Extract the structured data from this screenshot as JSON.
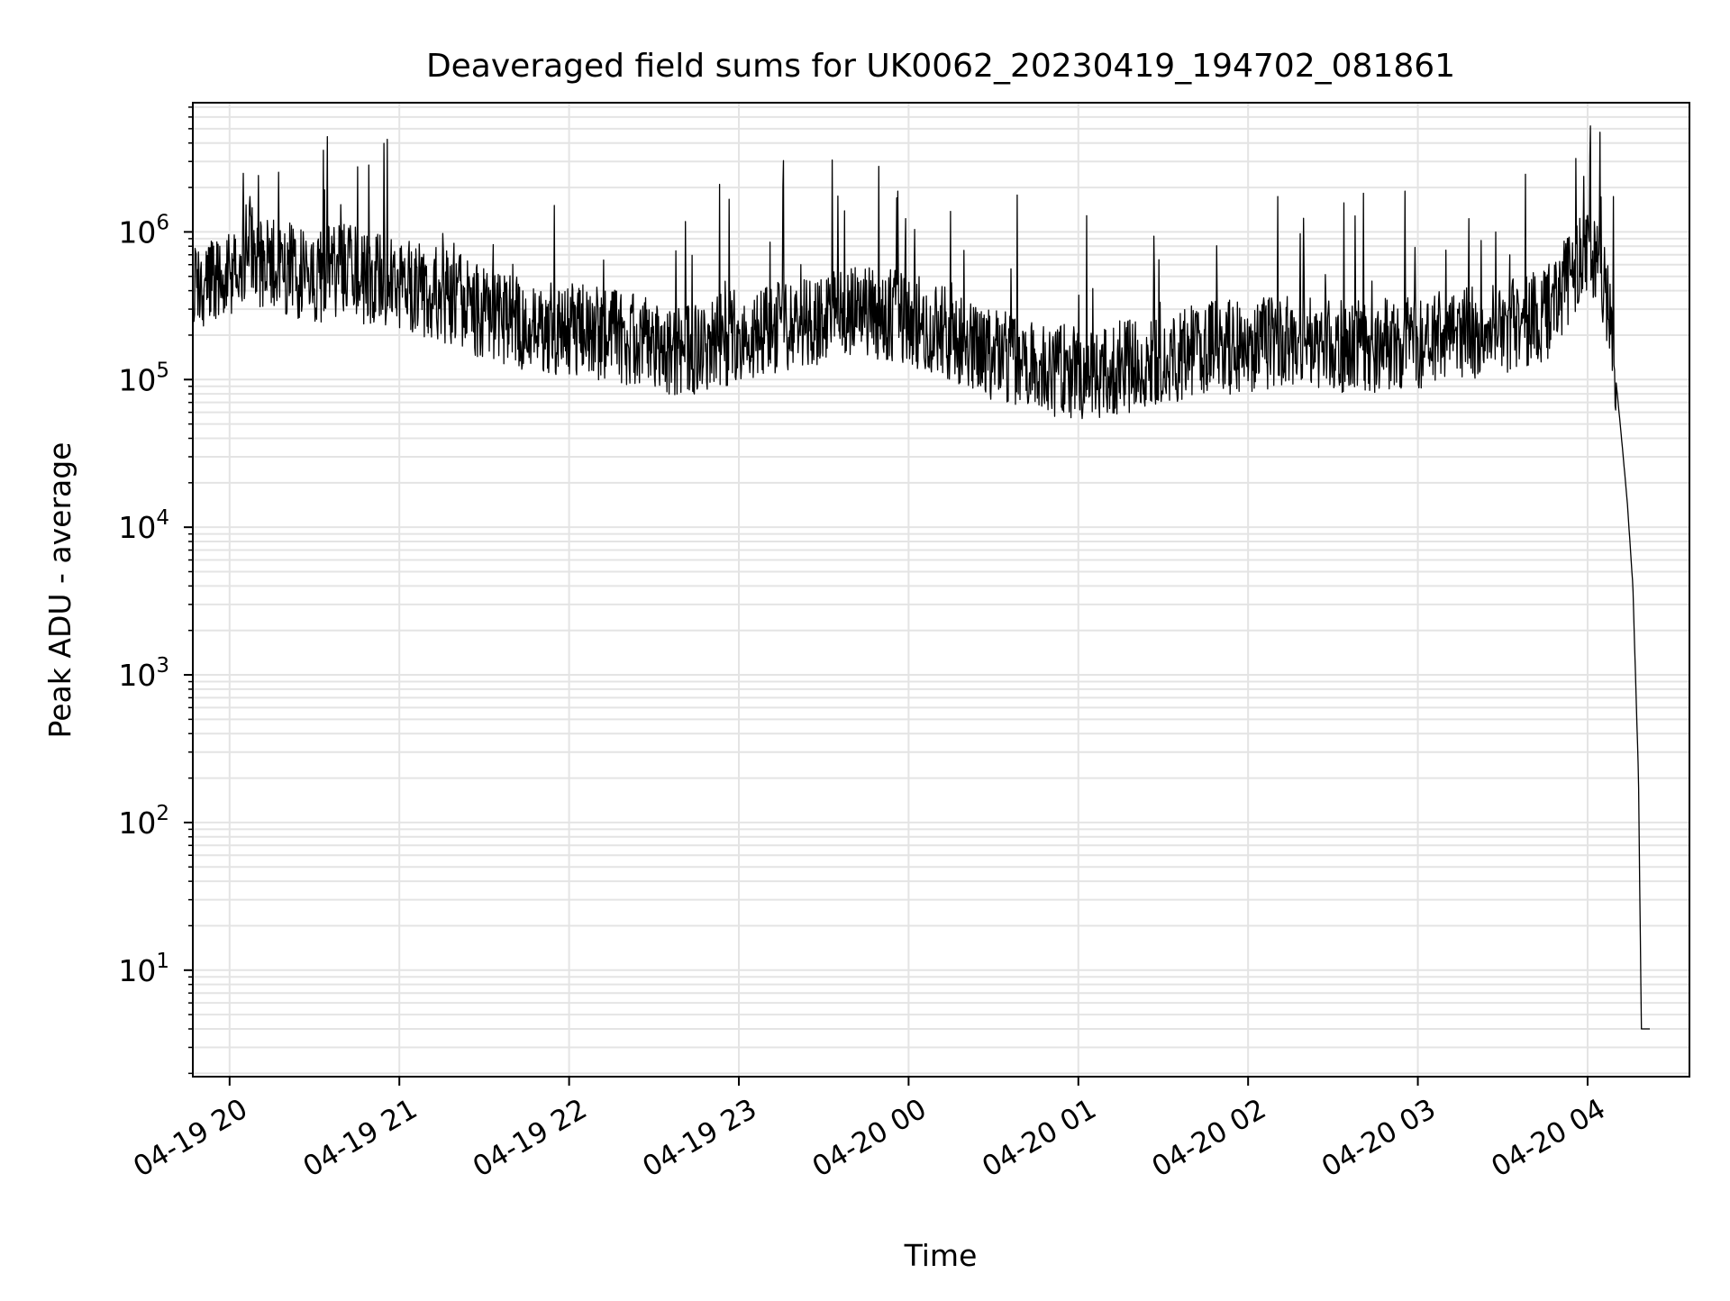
{
  "chart_data": {
    "type": "line",
    "title": "Deaveraged field sums for UK0062_20230419_194702_081861",
    "xlabel": "Time",
    "ylabel": "Peak ADU - average",
    "yscale": "log",
    "ylim": [
      1.9,
      7500000
    ],
    "xlim": [
      "2023-04-19 19:47",
      "2023-04-20 04:36"
    ],
    "x_ticks": [
      {
        "value": "2023-04-19 20:00",
        "label": "04-19 20"
      },
      {
        "value": "2023-04-19 21:00",
        "label": "04-19 21"
      },
      {
        "value": "2023-04-19 22:00",
        "label": "04-19 22"
      },
      {
        "value": "2023-04-19 23:00",
        "label": "04-19 23"
      },
      {
        "value": "2023-04-20 00:00",
        "label": "04-20 00"
      },
      {
        "value": "2023-04-20 01:00",
        "label": "04-20 01"
      },
      {
        "value": "2023-04-20 02:00",
        "label": "04-20 02"
      },
      {
        "value": "2023-04-20 03:00",
        "label": "04-20 03"
      },
      {
        "value": "2023-04-20 04:00",
        "label": "04-20 04"
      }
    ],
    "y_ticks": [
      {
        "value": 10,
        "base": "10",
        "exp": "1"
      },
      {
        "value": 100,
        "base": "10",
        "exp": "2"
      },
      {
        "value": 1000,
        "base": "10",
        "exp": "3"
      },
      {
        "value": 10000,
        "base": "10",
        "exp": "4"
      },
      {
        "value": 100000,
        "base": "10",
        "exp": "5"
      },
      {
        "value": 1000000,
        "base": "10",
        "exp": "6"
      }
    ],
    "grid": true,
    "line_color": "#000000",
    "grid_color": "#e4e4e4",
    "series": [
      {
        "x": [
          "2023-04-19 19:47",
          "2023-04-19 19:52",
          "2023-04-19 19:57",
          "2023-04-19 20:02",
          "2023-04-19 20:04",
          "2023-04-19 20:07",
          "2023-04-19 20:10",
          "2023-04-19 20:15",
          "2023-04-19 20:22",
          "2023-04-19 20:30",
          "2023-04-19 20:40",
          "2023-04-19 20:50",
          "2023-04-19 21:00",
          "2023-04-19 21:10",
          "2023-04-19 21:20",
          "2023-04-19 21:30",
          "2023-04-19 21:40",
          "2023-04-19 21:50",
          "2023-04-19 22:00",
          "2023-04-19 22:15",
          "2023-04-19 22:30",
          "2023-04-19 22:45",
          "2023-04-19 23:00",
          "2023-04-19 23:15",
          "2023-04-19 23:30",
          "2023-04-19 23:45",
          "2023-04-20 00:00",
          "2023-04-20 00:15",
          "2023-04-20 00:30",
          "2023-04-20 00:45",
          "2023-04-20 01:00",
          "2023-04-20 01:15",
          "2023-04-20 01:30",
          "2023-04-20 01:45",
          "2023-04-20 02:00",
          "2023-04-20 02:15",
          "2023-04-20 02:30",
          "2023-04-20 02:45",
          "2023-04-20 03:00",
          "2023-04-20 03:15",
          "2023-04-20 03:30",
          "2023-04-20 03:45",
          "2023-04-20 03:55",
          "2023-04-20 03:59",
          "2023-04-20 04:01",
          "2023-04-20 04:04",
          "2023-04-20 04:07",
          "2023-04-20 04:10",
          "2023-04-20 04:12",
          "2023-04-20 04:14",
          "2023-04-20 04:16",
          "2023-04-20 04:18",
          "2023-04-20 04:19",
          "2023-04-20 04:20",
          "2023-04-20 04:21",
          "2023-04-20 04:22"
        ],
        "values": [
          500000,
          450000,
          480000,
          520000,
          560000,
          900000,
          650000,
          600000,
          550000,
          500000,
          550000,
          480000,
          450000,
          400000,
          350000,
          280000,
          250000,
          230000,
          220000,
          200000,
          170000,
          160000,
          200000,
          230000,
          270000,
          300000,
          250000,
          200000,
          150000,
          120000,
          110000,
          120000,
          140000,
          160000,
          170000,
          190000,
          170000,
          170000,
          180000,
          200000,
          230000,
          270000,
          550000,
          850000,
          800000,
          600000,
          300000,
          100000,
          40000,
          15000,
          4000,
          200,
          4,
          4,
          4,
          4
        ]
      }
    ],
    "noise_amplitude": 0.32,
    "spike_max_factor": 7.5
  }
}
